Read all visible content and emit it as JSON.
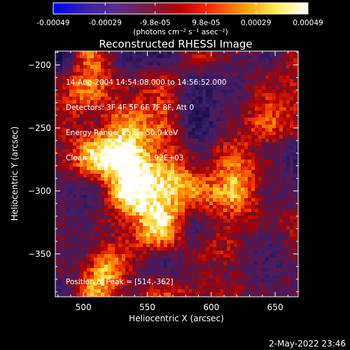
{
  "chart_data": {
    "type": "heatmap",
    "title": "Reconstructed RHESSI Image",
    "xlabel": "Heliocentric X (arcsec)",
    "ylabel": "Heliocentric Y (arcsec)",
    "xlim": [
      478,
      668
    ],
    "ylim": [
      -384,
      -189
    ],
    "x_ticks": [
      "500",
      "550",
      "600",
      "650"
    ],
    "x_tick_values": [
      500,
      550,
      600,
      650
    ],
    "y_ticks": [
      "-200",
      "-250",
      "-300",
      "-350"
    ],
    "y_tick_values": [
      -200,
      -250,
      -300,
      -350
    ],
    "colorbar": {
      "ticks": [
        "-0.00049",
        "-0.00029",
        "-9.8e-05",
        "9.8e-05",
        "0.00029",
        "0.00049"
      ],
      "tick_values": [
        -0.00049,
        -0.00029,
        -9.8e-05,
        9.8e-05,
        0.00029,
        0.00049
      ],
      "range": [
        -0.00049,
        0.00049
      ],
      "units": "(photons cm⁻² s⁻¹ asec⁻²)",
      "colors": [
        "#0000ff",
        "#3a1fb0",
        "#5a2d8c",
        "#7a1c40",
        "#b80000",
        "#ff3300",
        "#ff9900",
        "#ffee55",
        "#ffffff"
      ]
    },
    "annotations": [
      "14-Aug-2004 14:54:08.000 to 14:56:52.000",
      "Detectors: 3F 4F 5F 6F 7F 8F, Att 0",
      "Energy Range: 25.0 - 50.0 keV",
      "Clean     Total counts: 1.92E+03"
    ],
    "peak_label": "Position of Peak = [514,-362]",
    "peak": [
      514,
      -362
    ],
    "grid": false
  },
  "footer": {
    "timestamp": "2-May-2022 23:46"
  }
}
